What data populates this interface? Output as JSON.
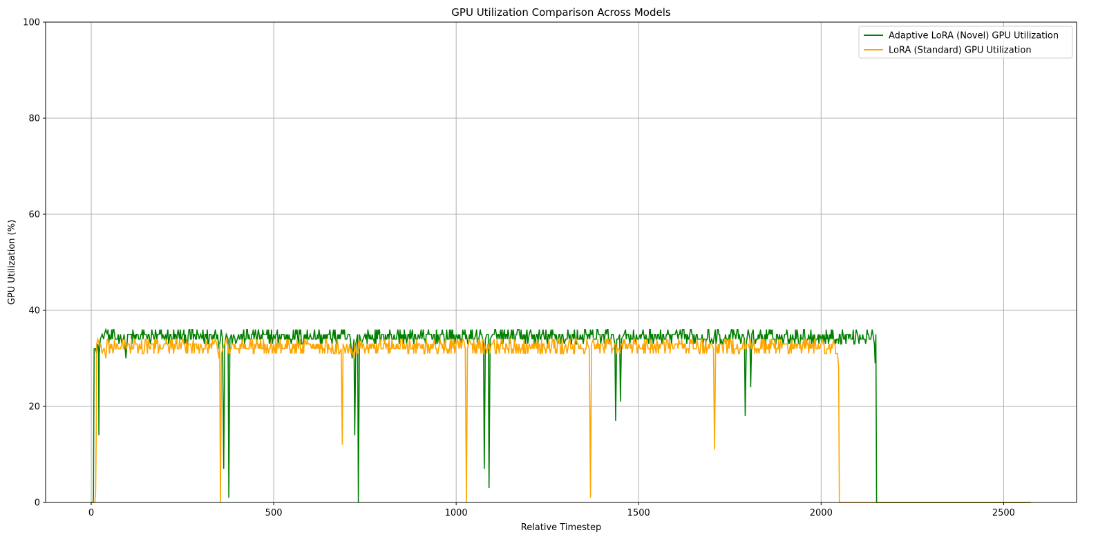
{
  "chart_data": {
    "type": "line",
    "title": "GPU Utilization Comparison Across Models",
    "xlabel": "Relative Timestep",
    "ylabel": "GPU Utilization (%)",
    "xlim": [
      -125,
      2700
    ],
    "ylim": [
      0,
      100
    ],
    "x_ticks": [
      0,
      500,
      1000,
      1500,
      2000,
      2500
    ],
    "x_tick_labels": [
      "0",
      "500",
      "1000",
      "1500",
      "2000",
      "2500"
    ],
    "y_ticks": [
      0,
      20,
      40,
      60,
      80,
      100
    ],
    "y_tick_labels": [
      "0",
      "20",
      "40",
      "60",
      "80",
      "100"
    ],
    "grid": true,
    "legend_position": "top-right",
    "series": [
      {
        "name": "Adaptive LoRA (Novel) GPU Utilization",
        "color": "#008000",
        "band": {
          "x_start": 22,
          "x_end": 2150,
          "low": 33,
          "high": 36
        },
        "points": [
          [
            0,
            0
          ],
          [
            5,
            0
          ],
          [
            6,
            1
          ],
          [
            8,
            32
          ],
          [
            12,
            32
          ],
          [
            15,
            31
          ],
          [
            18,
            33
          ],
          [
            20,
            32
          ],
          [
            21,
            14
          ],
          [
            22,
            31
          ],
          [
            25,
            34
          ],
          [
            30,
            35
          ],
          [
            40,
            36
          ],
          [
            80,
            35
          ],
          [
            95,
            30
          ],
          [
            100,
            35
          ],
          [
            150,
            35
          ],
          [
            200,
            34
          ],
          [
            300,
            35
          ],
          [
            340,
            36
          ],
          [
            350,
            32
          ],
          [
            360,
            34
          ],
          [
            363,
            7
          ],
          [
            366,
            33
          ],
          [
            375,
            34
          ],
          [
            377,
            1
          ],
          [
            380,
            34
          ],
          [
            390,
            35
          ],
          [
            400,
            34
          ],
          [
            450,
            36
          ],
          [
            500,
            35
          ],
          [
            600,
            35
          ],
          [
            700,
            34
          ],
          [
            715,
            30
          ],
          [
            720,
            34
          ],
          [
            722,
            14
          ],
          [
            725,
            33
          ],
          [
            730,
            35
          ],
          [
            732,
            0
          ],
          [
            735,
            35
          ],
          [
            745,
            34
          ],
          [
            800,
            35
          ],
          [
            900,
            34
          ],
          [
            1000,
            35
          ],
          [
            1050,
            34
          ],
          [
            1075,
            33
          ],
          [
            1077,
            7
          ],
          [
            1080,
            34
          ],
          [
            1088,
            35
          ],
          [
            1090,
            3
          ],
          [
            1093,
            34
          ],
          [
            1100,
            35
          ],
          [
            1200,
            35
          ],
          [
            1300,
            34
          ],
          [
            1400,
            35
          ],
          [
            1435,
            33
          ],
          [
            1437,
            17
          ],
          [
            1440,
            34
          ],
          [
            1448,
            35
          ],
          [
            1450,
            21
          ],
          [
            1453,
            34
          ],
          [
            1460,
            35
          ],
          [
            1500,
            34
          ],
          [
            1600,
            35
          ],
          [
            1700,
            34
          ],
          [
            1780,
            33
          ],
          [
            1790,
            34
          ],
          [
            1792,
            18
          ],
          [
            1795,
            33
          ],
          [
            1805,
            34
          ],
          [
            1807,
            24
          ],
          [
            1810,
            35
          ],
          [
            1900,
            35
          ],
          [
            2000,
            34
          ],
          [
            2100,
            35
          ],
          [
            2140,
            36
          ],
          [
            2146,
            33
          ],
          [
            2148,
            29
          ],
          [
            2150,
            35
          ],
          [
            2152,
            0
          ],
          [
            2575,
            0
          ]
        ]
      },
      {
        "name": "LoRA (Standard) GPU Utilization",
        "color": "#FFA500",
        "band": {
          "x_start": 22,
          "x_end": 2050,
          "low": 31,
          "high": 34
        },
        "points": [
          [
            0,
            0
          ],
          [
            10,
            0
          ],
          [
            12,
            2
          ],
          [
            14,
            16
          ],
          [
            15,
            33
          ],
          [
            18,
            34
          ],
          [
            22,
            33
          ],
          [
            30,
            31
          ],
          [
            40,
            30
          ],
          [
            60,
            31
          ],
          [
            80,
            32
          ],
          [
            100,
            33
          ],
          [
            200,
            33
          ],
          [
            300,
            33
          ],
          [
            340,
            34
          ],
          [
            350,
            30
          ],
          [
            352,
            33
          ],
          [
            354,
            0
          ],
          [
            357,
            31
          ],
          [
            365,
            33
          ],
          [
            400,
            32
          ],
          [
            500,
            33
          ],
          [
            600,
            33
          ],
          [
            685,
            32
          ],
          [
            688,
            12
          ],
          [
            690,
            33
          ],
          [
            700,
            33
          ],
          [
            720,
            30
          ],
          [
            722,
            33
          ],
          [
            800,
            32
          ],
          [
            900,
            33
          ],
          [
            1000,
            33
          ],
          [
            1025,
            32
          ],
          [
            1028,
            0
          ],
          [
            1031,
            32
          ],
          [
            1040,
            33
          ],
          [
            1100,
            33
          ],
          [
            1200,
            33
          ],
          [
            1300,
            33
          ],
          [
            1365,
            32
          ],
          [
            1368,
            1
          ],
          [
            1371,
            33
          ],
          [
            1400,
            33
          ],
          [
            1500,
            33
          ],
          [
            1600,
            33
          ],
          [
            1700,
            33
          ],
          [
            1705,
            32
          ],
          [
            1708,
            11
          ],
          [
            1711,
            33
          ],
          [
            1800,
            33
          ],
          [
            1900,
            33
          ],
          [
            2000,
            33
          ],
          [
            2045,
            31
          ],
          [
            2048,
            28
          ],
          [
            2050,
            0
          ],
          [
            2575,
            0
          ]
        ]
      }
    ]
  }
}
